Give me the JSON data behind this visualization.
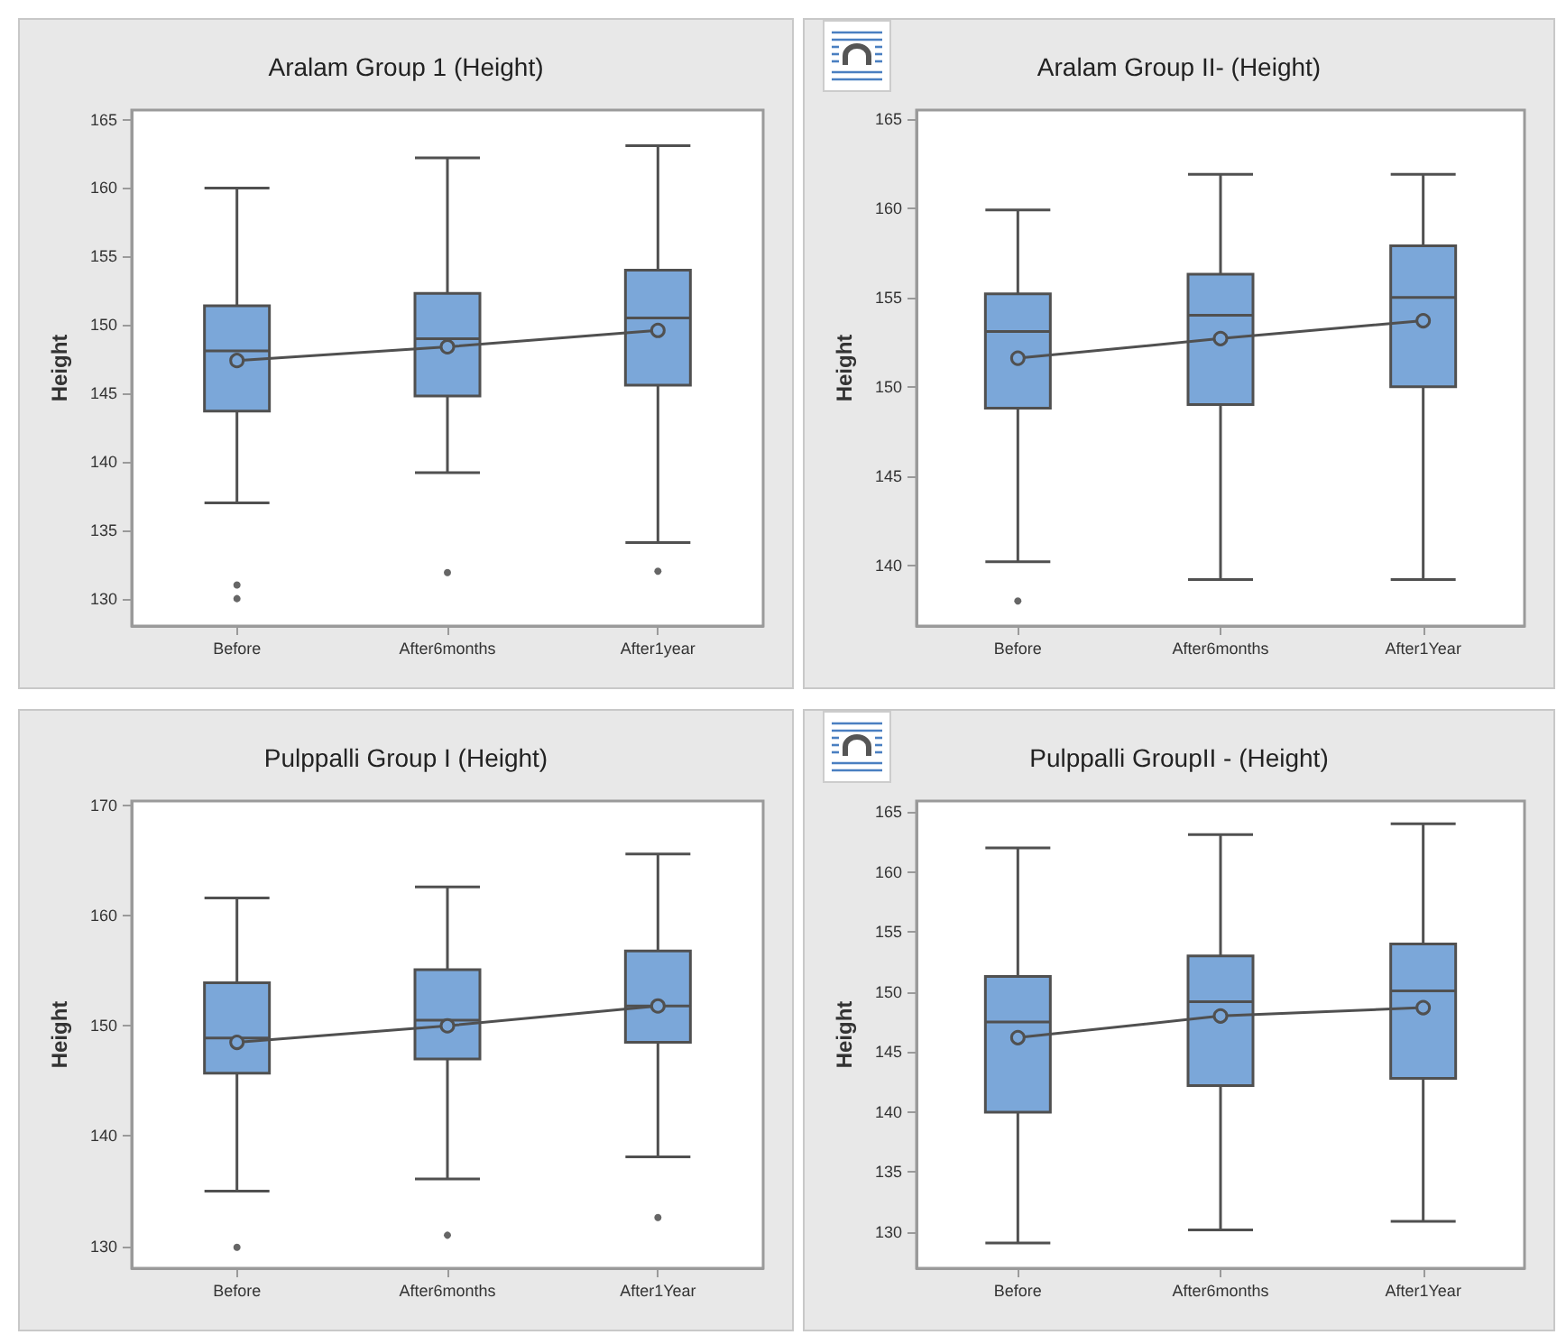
{
  "chart_data": [
    {
      "type": "box",
      "title": "Aralam Group 1 (Height)",
      "ylabel": "Height",
      "categories": [
        "Before",
        "After6months",
        "After1year"
      ],
      "ylim": [
        128,
        165.7
      ],
      "yticks": [
        130,
        135,
        140,
        145,
        150,
        155,
        160,
        165
      ],
      "grid": false,
      "series": [
        {
          "type": "box",
          "color": "#7ba7d9",
          "boxes": [
            {
              "low": 137.0,
              "q1": 143.7,
              "median": 148.1,
              "q3": 151.4,
              "high": 160.0,
              "outliers": [
                131.0,
                130.0
              ]
            },
            {
              "low": 139.2,
              "q1": 144.8,
              "median": 149.0,
              "q3": 152.3,
              "high": 162.2,
              "outliers": [
                131.9
              ]
            },
            {
              "low": 134.1,
              "q1": 145.6,
              "median": 150.5,
              "q3": 154.0,
              "high": 163.1,
              "outliers": [
                132.0
              ]
            }
          ]
        },
        {
          "type": "line",
          "color": "#505050",
          "marker": "circle",
          "values": [
            147.4,
            148.4,
            149.6
          ]
        }
      ]
    },
    {
      "type": "box",
      "title": "Aralam Group II- (Height)",
      "ylabel": "Height",
      "categories": [
        "Before",
        "After6months",
        "After1Year"
      ],
      "ylim": [
        136.6,
        165.5
      ],
      "yticks": [
        140,
        145,
        150,
        155,
        160,
        165
      ],
      "grid": false,
      "series": [
        {
          "type": "box",
          "color": "#7ba7d9",
          "boxes": [
            {
              "low": 140.2,
              "q1": 148.8,
              "median": 153.1,
              "q3": 155.2,
              "high": 159.9,
              "outliers": [
                138.0
              ]
            },
            {
              "low": 139.2,
              "q1": 149.0,
              "median": 154.0,
              "q3": 156.3,
              "high": 161.9
            },
            {
              "low": 139.2,
              "q1": 150.0,
              "median": 155.0,
              "q3": 157.9,
              "high": 161.9
            }
          ]
        },
        {
          "type": "line",
          "color": "#505050",
          "marker": "circle",
          "values": [
            151.6,
            152.7,
            153.7
          ]
        }
      ]
    },
    {
      "type": "box",
      "title": "Pulppalli Group I (Height)",
      "ylabel": "Height",
      "categories": [
        "Before",
        "After6months",
        "After1Year"
      ],
      "ylim": [
        128,
        170.4
      ],
      "yticks": [
        130,
        140,
        150,
        160,
        170
      ],
      "grid": false,
      "series": [
        {
          "type": "box",
          "color": "#7ba7d9",
          "boxes": [
            {
              "low": 135.0,
              "q1": 145.7,
              "median": 148.9,
              "q3": 153.9,
              "high": 161.6,
              "outliers": [
                129.9
              ]
            },
            {
              "low": 136.1,
              "q1": 147.0,
              "median": 150.5,
              "q3": 155.1,
              "high": 162.6,
              "outliers": [
                131.0
              ]
            },
            {
              "low": 138.1,
              "q1": 148.5,
              "median": 151.8,
              "q3": 156.8,
              "high": 165.6,
              "outliers": [
                132.6
              ]
            }
          ]
        },
        {
          "type": "line",
          "color": "#505050",
          "marker": "circle",
          "values": [
            148.5,
            150.0,
            151.8
          ]
        }
      ]
    },
    {
      "type": "box",
      "title": "Pulppalli GroupII - (Height)",
      "ylabel": "Height",
      "categories": [
        "Before",
        "After6months",
        "After1Year"
      ],
      "ylim": [
        127,
        165.9
      ],
      "yticks": [
        130,
        135,
        140,
        145,
        150,
        155,
        160,
        165
      ],
      "grid": false,
      "series": [
        {
          "type": "box",
          "color": "#7ba7d9",
          "boxes": [
            {
              "low": 129.1,
              "q1": 140.0,
              "median": 147.5,
              "q3": 151.3,
              "high": 162.0
            },
            {
              "low": 130.2,
              "q1": 142.2,
              "median": 149.2,
              "q3": 153.0,
              "high": 163.1
            },
            {
              "low": 130.9,
              "q1": 142.8,
              "median": 150.1,
              "q3": 154.0,
              "high": 164.0
            }
          ]
        },
        {
          "type": "line",
          "color": "#505050",
          "marker": "circle",
          "values": [
            146.2,
            148.0,
            148.7
          ]
        }
      ]
    }
  ]
}
